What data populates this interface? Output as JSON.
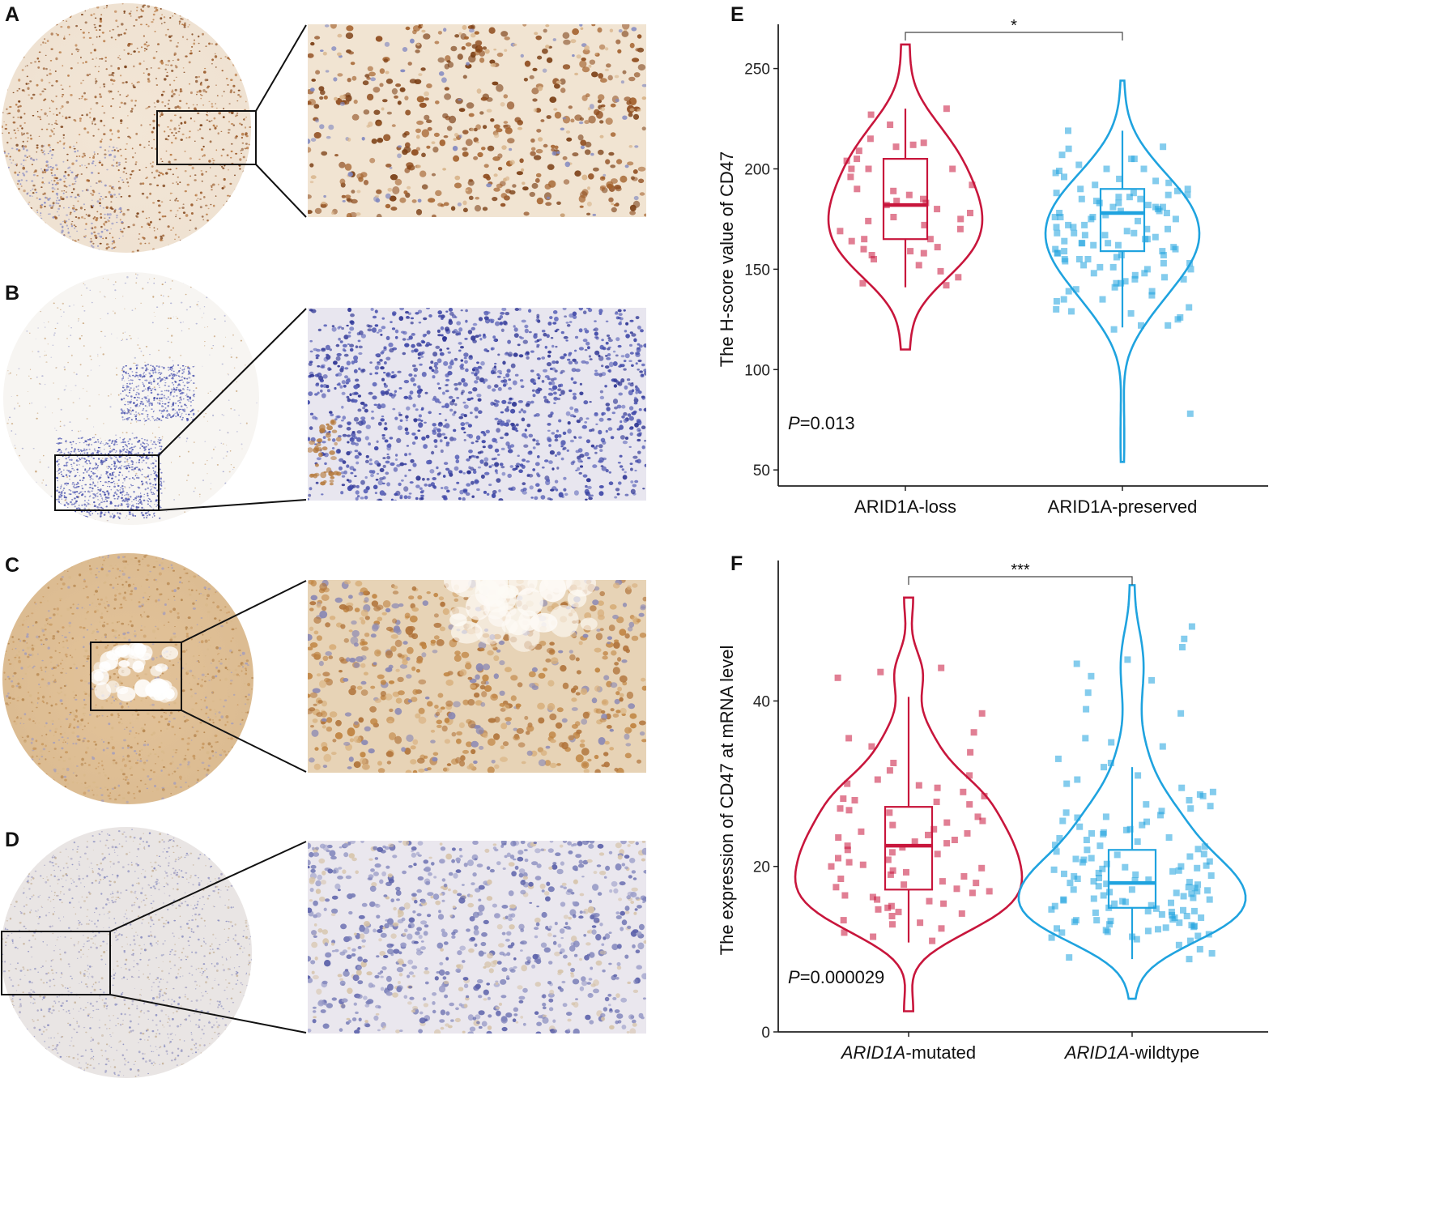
{
  "panels": {
    "A": "A",
    "B": "B",
    "C": "C",
    "D": "D",
    "E": "E",
    "F": "F"
  },
  "colors": {
    "loss": "#c8163c",
    "preserved": "#1fa3df",
    "brown_stain": "#9a5a2a",
    "blue_stain": "#3f48a8",
    "membrane_stain": "#c89a5c",
    "faint_stain": "#7a7fb8"
  },
  "ihc_panels": [
    {
      "id": "A",
      "stain": "nuclear-brown",
      "description_icon": "tissue-core-icon"
    },
    {
      "id": "B",
      "stain": "lymphoid-blue",
      "description_icon": "tissue-core-icon"
    },
    {
      "id": "C",
      "stain": "membranous-brown",
      "description_icon": "tissue-core-icon"
    },
    {
      "id": "D",
      "stain": "negative-blue",
      "description_icon": "tissue-core-icon"
    }
  ],
  "chart_data": [
    {
      "id": "E",
      "type": "violin",
      "ylabel": "The H-score value of CD47",
      "xlabel": "",
      "ylim": [
        42,
        268
      ],
      "yticks": [
        50,
        100,
        150,
        200,
        250
      ],
      "categories": [
        "ARID1A-loss",
        "ARID1A-preserved"
      ],
      "categories_italic_part": [
        "",
        ""
      ],
      "categories_rest": [
        "ARID1A-loss",
        "ARID1A-preserved"
      ],
      "pvalue": "=0.013",
      "pvalue_prefix": "P",
      "significance": "*",
      "series": [
        {
          "color": "#c8163c",
          "violin_range": [
            110,
            262
          ],
          "box": {
            "q1": 165,
            "median": 182,
            "q3": 205,
            "whisker_low": 141,
            "whisker_high": 230
          },
          "points": [
            215,
            204,
            211,
            200,
            196,
            189,
            184,
            180,
            176,
            165,
            190,
            192,
            172,
            170,
            164,
            160,
            158,
            149,
            146,
            143,
            142,
            200,
            213,
            209,
            222,
            227,
            230,
            182,
            178,
            175,
            169,
            161,
            159,
            157,
            152,
            183,
            200,
            205,
            212,
            187,
            155,
            165,
            174,
            185
          ]
        },
        {
          "color": "#1fa3df",
          "violin_range": [
            54,
            244
          ],
          "box": {
            "q1": 159,
            "median": 178,
            "q3": 190,
            "whisker_low": 121,
            "whisker_high": 219
          },
          "points": [
            211,
            210,
            207,
            205,
            202,
            200,
            198,
            196,
            194,
            192,
            190,
            189,
            188,
            187,
            186,
            185,
            184,
            183,
            182,
            181,
            180,
            179,
            178,
            177,
            176,
            175,
            174,
            172,
            170,
            169,
            168,
            167,
            166,
            165,
            164,
            163,
            162,
            161,
            160,
            159,
            158,
            157,
            156,
            155,
            154,
            153,
            151,
            150,
            148,
            146,
            145,
            143,
            141,
            139,
            137,
            135,
            131,
            129,
            126,
            122,
            120,
            187,
            181,
            176,
            170,
            165,
            160,
            155,
            150,
            145,
            140,
            130,
            125,
            78,
            219,
            200,
            195,
            190,
            185,
            178,
            171,
            168,
            163,
            158,
            153,
            148,
            144,
            134,
            128,
            122,
            186,
            183,
            179,
            175,
            171,
            167,
            163,
            159,
            155,
            151,
            147,
            143,
            139,
            135,
            205,
            199,
            193,
            188,
            181,
            176,
            172,
            168,
            162,
            157,
            152
          ]
        }
      ]
    },
    {
      "id": "F",
      "type": "violin",
      "ylabel": "The expression of CD47 at mRNA level",
      "xlabel": "",
      "ylim": [
        0,
        56
      ],
      "yticks": [
        0,
        20,
        40
      ],
      "categories": [
        "ARID1A-mutated",
        "ARID1A-wildtype"
      ],
      "categories_italic_part": [
        "ARID1A",
        "ARID1A"
      ],
      "categories_rest": [
        "-mutated",
        "-wildtype"
      ],
      "pvalue": "=0.000029",
      "pvalue_prefix": "P",
      "significance": "***",
      "series": [
        {
          "color": "#c8163c",
          "violin_range": [
            2.5,
            52.5
          ],
          "box": {
            "q1": 17.2,
            "median": 22.5,
            "q3": 27.2,
            "whisker_low": 10.8,
            "whisker_high": 40.5
          },
          "points": [
            44,
            43.5,
            42.8,
            38.5,
            36.2,
            35.5,
            34.5,
            33.8,
            32.5,
            31,
            30.5,
            30,
            29.5,
            29,
            28.5,
            28,
            27.5,
            27,
            26.5,
            26,
            25.5,
            25,
            24.5,
            24,
            23.5,
            23,
            22.5,
            22,
            21.5,
            21,
            20.5,
            20,
            19.5,
            19,
            18.5,
            18,
            17.5,
            17,
            16.5,
            16,
            15.5,
            15,
            14.5,
            14,
            13.5,
            13,
            12.5,
            12,
            11.5,
            11,
            28.2,
            26.8,
            25.3,
            23.8,
            22.3,
            20.8,
            19.3,
            17.8,
            16.3,
            14.8,
            24.2,
            21.7,
            19.8,
            18.2,
            16.8,
            15.2,
            27.8,
            29.8,
            31.6,
            22.8,
            20.2,
            18.8,
            17.3,
            15.8,
            14.3,
            13.2,
            23.2
          ]
        },
        {
          "color": "#1fa3df",
          "violin_range": [
            4,
            54
          ],
          "box": {
            "q1": 15,
            "median": 18,
            "q3": 22,
            "whisker_low": 8.8,
            "whisker_high": 32
          },
          "points": [
            49,
            47.5,
            46.5,
            45,
            44.5,
            43,
            42.5,
            41,
            39,
            38.5,
            35.5,
            35,
            34.5,
            33,
            32.5,
            32,
            31,
            30.5,
            30,
            29.5,
            29,
            28.5,
            28,
            27.5,
            27,
            26.5,
            26,
            25.5,
            25,
            24.5,
            24,
            23.5,
            23,
            22.5,
            22,
            21.5,
            21,
            20.5,
            20,
            19.8,
            19.5,
            19.2,
            19,
            18.8,
            18.5,
            18.2,
            18,
            17.8,
            17.5,
            17.2,
            17,
            16.8,
            16.5,
            16.2,
            16,
            15.8,
            15.5,
            15.2,
            15,
            14.8,
            14.5,
            14.2,
            14,
            13.8,
            13.5,
            13.2,
            13,
            12.8,
            12.5,
            12.2,
            12,
            11.8,
            11.5,
            11.2,
            11,
            10.5,
            10,
            9.5,
            9,
            8.8,
            26.2,
            24.8,
            23.2,
            21.8,
            20.3,
            19.1,
            17.9,
            16.7,
            15.6,
            14.4,
            13.3,
            12.3,
            25.4,
            22.6,
            20.9,
            19.7,
            18.3,
            17.1,
            15.9,
            14.6,
            13.6,
            12.6,
            11.6,
            23.9,
            21.2,
            20.1,
            18.9,
            17.6,
            16.4,
            15.3,
            14.1,
            12.9,
            27.3,
            24.1,
            22.1,
            20.6,
            19.4,
            18.1,
            16.9,
            15.7,
            14.6,
            13.4,
            12.1,
            28.7,
            25.9,
            23.4,
            21.4,
            19.9,
            18.6,
            17.4,
            16.1,
            14.9,
            13.8,
            12.7,
            11.4,
            26.7,
            24.4,
            22.4,
            20.8,
            19.6,
            18.4,
            17.2,
            16.0,
            14.7,
            13.5,
            12.4
          ]
        }
      ]
    }
  ]
}
